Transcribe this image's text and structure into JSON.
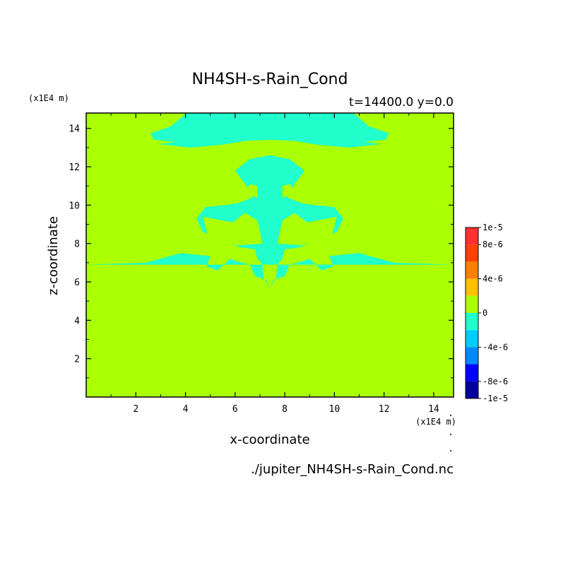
{
  "chart_data": {
    "type": "heatmap",
    "title": "NH4SH-s-Rain_Cond",
    "subtitle": "t=14400.0 y=0.0",
    "xlabel": "x-coordinate",
    "ylabel": "z-coordinate",
    "x_unit": "(x1E4 m)",
    "y_unit": "(x1E4 m)",
    "xlim": [
      0,
      14.8
    ],
    "ylim": [
      0,
      14.8
    ],
    "x_ticks": [
      "2",
      "4",
      "6",
      "8",
      "10",
      "12",
      "14"
    ],
    "y_ticks": [
      "2",
      "4",
      "6",
      "8",
      "10",
      "12",
      "14"
    ],
    "file_label": "./jupiter_NH4SH-s-Rain_Cond.nc",
    "grid": false,
    "legend_position": "right",
    "colorbar": {
      "labels": [
        "1e-5",
        "8e-6",
        "4e-6",
        "0",
        "-4e-6",
        "-8e-6",
        "-1e-5"
      ],
      "levels": [
        {
          "min": 8e-06,
          "max": 1e-05,
          "color": "#ff3030"
        },
        {
          "min": 6e-06,
          "max": 8e-06,
          "color": "#ff4000"
        },
        {
          "min": 4e-06,
          "max": 6e-06,
          "color": "#ff8000"
        },
        {
          "min": 2e-06,
          "max": 4e-06,
          "color": "#ffc000"
        },
        {
          "min": 0,
          "max": 2e-06,
          "color": "#aaff00"
        },
        {
          "min": -2e-06,
          "max": 0,
          "color": "#20ffcc"
        },
        {
          "min": -4e-06,
          "max": -2e-06,
          "color": "#00ccff"
        },
        {
          "min": -6e-06,
          "max": -4e-06,
          "color": "#0088ff"
        },
        {
          "min": -8e-06,
          "max": -6e-06,
          "color": "#0000ff"
        },
        {
          "min": -1e-05,
          "max": -8e-06,
          "color": "#0000a0"
        }
      ]
    },
    "field": {
      "background_level": "0 to 2e-6",
      "background_color": "#aaff00",
      "region_level": "-2e-6 to 0",
      "region_color": "#20ffcc",
      "region_extent_z": [
        5.7,
        14.8
      ],
      "symmetry": "mirror about x=7.4"
    }
  }
}
